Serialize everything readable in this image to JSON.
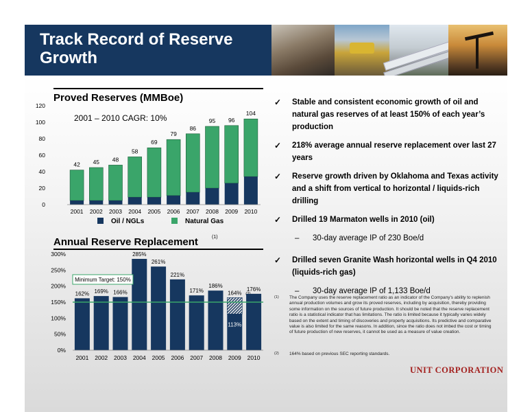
{
  "slide_title": "Track Record of Reserve Growth",
  "company_logo": "UNIT CORPORATION",
  "colors": {
    "header": "#16375f",
    "natural_gas": "#3aa56a",
    "oil_ngls": "#16375f",
    "target_line": "#3aa56a",
    "logo": "#a3201e"
  },
  "photo_icons": [
    "drilling-crew-photo",
    "wellhead-valve-photo",
    "pipeline-photo",
    "pumpjack-photo"
  ],
  "chart_data": [
    {
      "type": "bar",
      "stacked": true,
      "title": "Proved Reserves (MMBoe)",
      "annotation": "2001 – 2010 CAGR: 10%",
      "categories": [
        "2001",
        "2002",
        "2003",
        "2004",
        "2005",
        "2006",
        "2007",
        "2008",
        "2009",
        "2010"
      ],
      "totals": [
        42,
        45,
        48,
        58,
        69,
        79,
        86,
        95,
        96,
        104
      ],
      "series": [
        {
          "name": "Oil / NGLs",
          "values": [
            5,
            5,
            5,
            9,
            9,
            11,
            15,
            20,
            26,
            34
          ]
        },
        {
          "name": "Natural Gas",
          "values": [
            37,
            40,
            43,
            49,
            60,
            68,
            71,
            75,
            70,
            70
          ]
        }
      ],
      "ylim": [
        0,
        120
      ],
      "yticks": [
        "0",
        "20",
        "40",
        "60",
        "80",
        "100",
        "120"
      ],
      "legend_position": "bottom",
      "grid": false
    },
    {
      "type": "bar",
      "title": "Annual Reserve Replacement",
      "title_footnote": "(1)",
      "categories": [
        "2001",
        "2002",
        "2003",
        "2004",
        "2005",
        "2006",
        "2007",
        "2008",
        "2009",
        "2010"
      ],
      "values": [
        162,
        169,
        166,
        285,
        261,
        221,
        171,
        186,
        164,
        176
      ],
      "labels": [
        "162%",
        "169%",
        "166%",
        "285%",
        "261%",
        "221%",
        "171%",
        "186%",
        "164%",
        "176%"
      ],
      "label_footnotes": [
        "",
        "",
        "",
        "",
        "",
        "",
        "",
        "",
        "(2)",
        ""
      ],
      "overlay": {
        "category": "2009",
        "value": 113,
        "label": "113%"
      },
      "target": {
        "value": 150,
        "label": "Minimum Target: 150%"
      },
      "ylim": [
        0,
        300
      ],
      "yticks": [
        "0%",
        "50%",
        "100%",
        "150%",
        "200%",
        "250%",
        "300%"
      ],
      "grid": false
    }
  ],
  "bullets": [
    {
      "text": "Stable and consistent economic growth of oil and natural gas reserves of at least 150% of each year’s production"
    },
    {
      "text": "218% average annual reserve replacement over last 27 years"
    },
    {
      "text": "Reserve growth driven by Oklahoma and Texas activity and a shift from vertical to horizontal / liquids-rich drilling"
    },
    {
      "text": "Drilled 19 Marmaton wells in 2010 (oil)",
      "sub": "30-day average IP of 230 Boe/d"
    },
    {
      "text": "Drilled seven Granite Wash horizontal wells in Q4 2010 (liquids-rich gas)",
      "sub": "30-day average IP of 1,133 Boe/d"
    }
  ],
  "footnotes": [
    {
      "marker": "(1)",
      "text": "The Company uses the reserve replacement ratio as an indicator of the Company's ability to replenish annual production volumes and grow its proved reserves, including by acquisition, thereby providing some information on the sources of future production. It should be noted that the reserve replacement ratio is a statistical indicator that has limitations. The ratio is limited because it typically varies widely based on the extent and timing of discoveries and property acquisitions. Its predictive and comparative value is also limited for the same reasons. In addition, since the ratio does not imbed the cost or timing of future production of new reserves, it cannot be used as a measure of value creation."
    },
    {
      "marker": "(2)",
      "text": "164% based on previous SEC reporting standards."
    }
  ]
}
